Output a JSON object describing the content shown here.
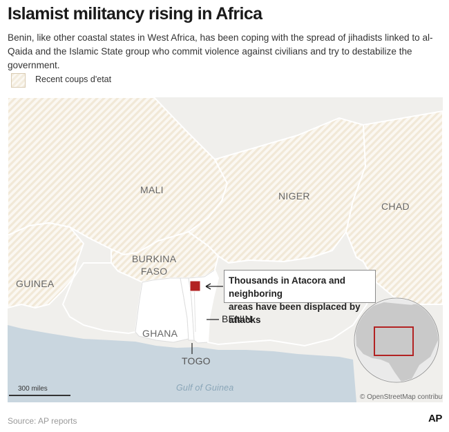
{
  "header": {
    "title": "Islamist militancy rising in Africa",
    "subtitle": "Benin, like other coastal states in West Africa, has been coping with the spread of jihadists linked to al-Qaida and the Islamic State group who commit violence against civilians and try to destabilize the government."
  },
  "legend": {
    "label": "Recent coups d'etat"
  },
  "map": {
    "countries": {
      "mali": "MALI",
      "niger": "NIGER",
      "chad": "CHAD",
      "burkina_line1": "BURKINA",
      "burkina_line2": "FASO",
      "guinea": "GUINEA",
      "ghana": "GHANA",
      "togo": "TOGO",
      "benin": "BENIN"
    },
    "water": {
      "gulf": "Gulf of Guinea"
    },
    "callout": {
      "line1": "Thousands in Atacora and neighboring",
      "line2": "areas have been displaced by attacks"
    },
    "scale": "300 miles",
    "attribution": "© OpenStreetMap contributors",
    "colors": {
      "land": "#f0efec",
      "coup_hatch": "#f3ecde",
      "highlight_land": "#ffffff",
      "water": "#c9d6df",
      "border": "#ffffff",
      "marker": "#b22222",
      "globe_land": "#c9c9c9",
      "globe_box": "#b22222"
    }
  },
  "footer": {
    "source": "Source: AP reports",
    "logo": "AP"
  }
}
